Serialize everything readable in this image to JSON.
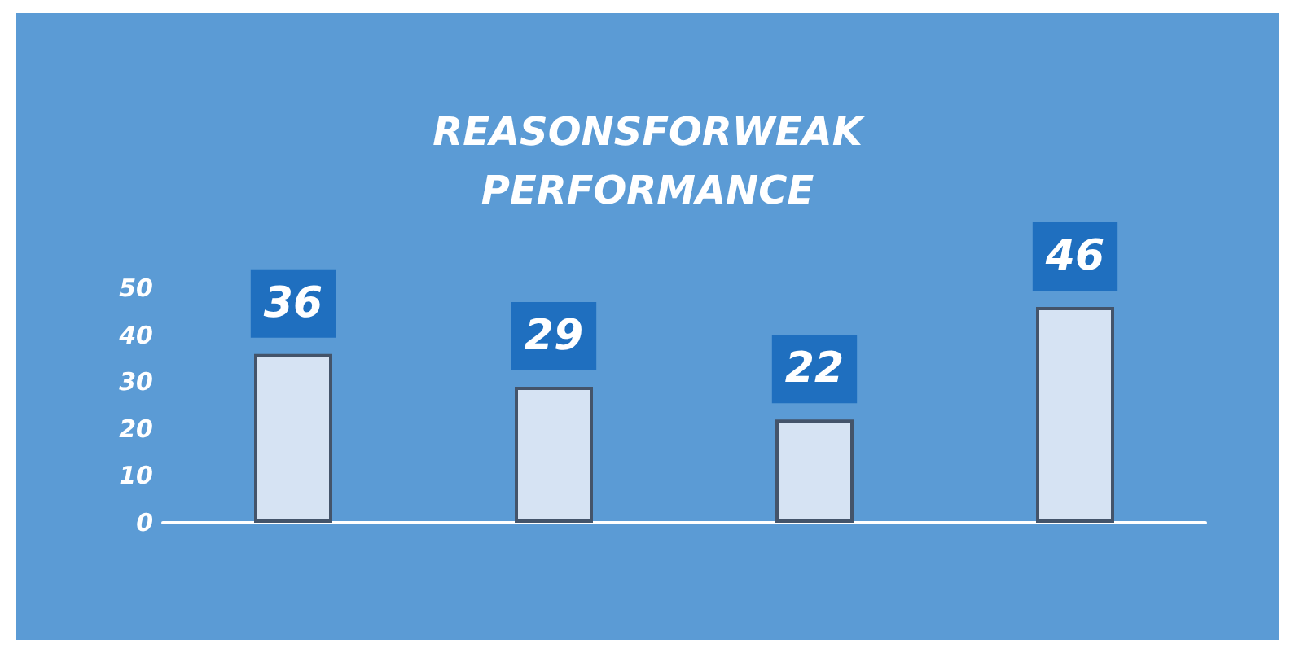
{
  "chart_data": {
    "type": "bar",
    "title": "REASONSFORWEAK PERFORMANCE",
    "categories": [
      null,
      null,
      null,
      null
    ],
    "values": [
      36,
      29,
      22,
      46
    ],
    "color": "#d6e3f3",
    "ylim": [
      0,
      50
    ],
    "yticks": [
      0,
      10,
      20,
      30,
      40,
      50
    ],
    "data_labels": true,
    "grid": false
  }
}
